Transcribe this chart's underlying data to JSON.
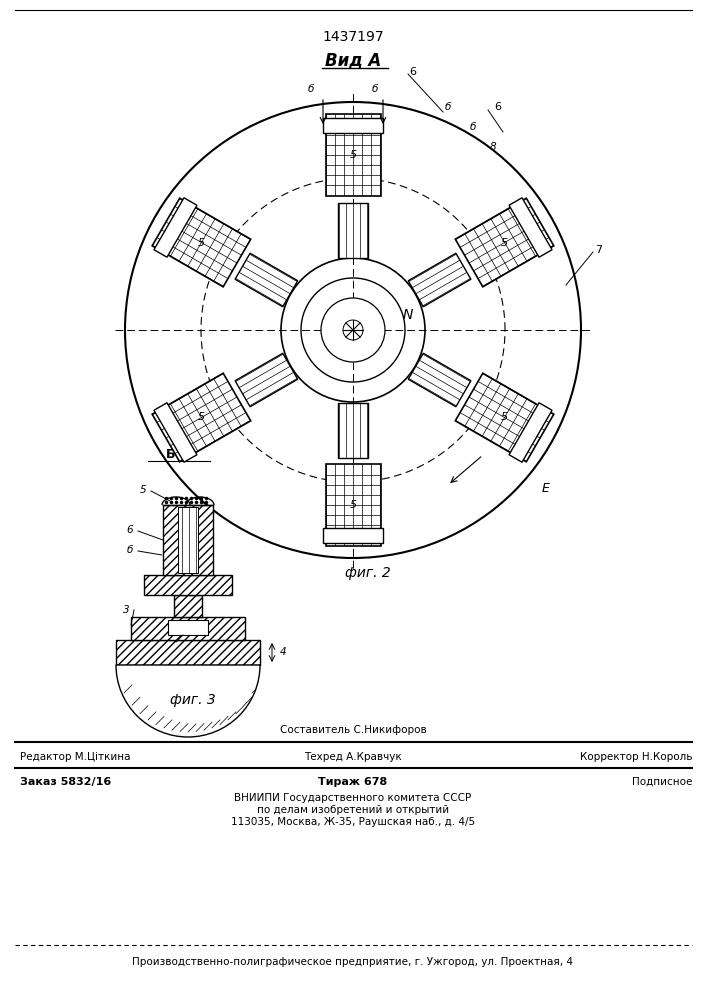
{
  "patent_number": "1437197",
  "view_label": "Вид А",
  "fig2_label": "фиг. 2",
  "fig3_label": "фиг. 3",
  "bb_label": "Б-Б",
  "bg_color": "#ffffff",
  "line_color": "#000000",
  "footer_line1_left": "Редактор М.Цiткина",
  "footer_line1_center": "Техред А.Кравчук",
  "footer_line1_center_top": "Составитель С.Никифоров",
  "footer_line1_right": "Корректор Н.Король",
  "footer_line2_left": "Заказ 5832/16",
  "footer_line2_center": "Тираж 678",
  "footer_line2_right": "Подписное",
  "footer_line3": "ВНИИПИ Государственного комитета СССР",
  "footer_line4": "по делам изобретений и открытий",
  "footer_line5": "113035, Москва, Ж-35, Раушская наб., д. 4/5",
  "footer_bottom": "Производственно-полиграфическое предприятие, г. Ужгород, ул. Проектная, 4"
}
